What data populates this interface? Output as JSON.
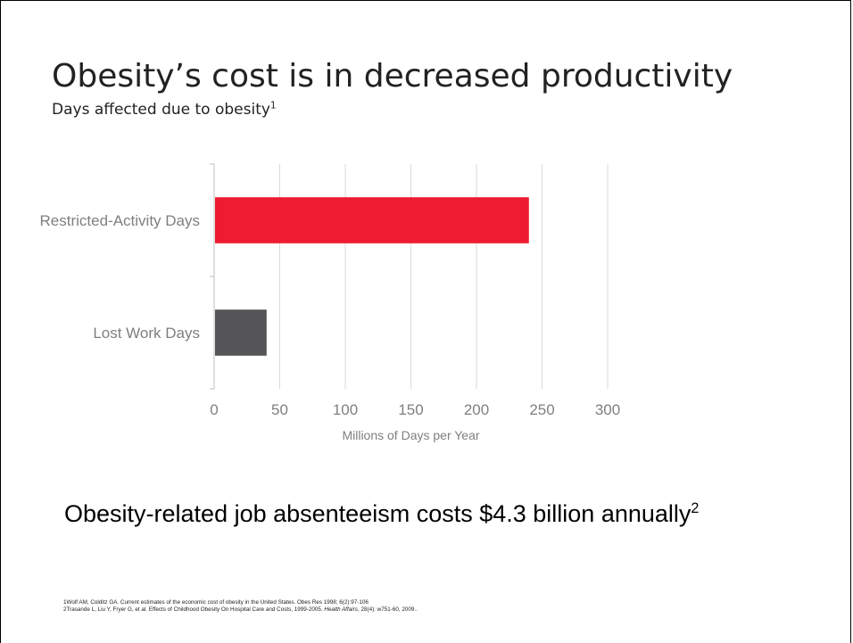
{
  "slide": {
    "title": "Obesity’s cost is in decreased productivity",
    "subtitle": "Days affected due to obesity",
    "subtitle_sup": "1",
    "takeaway": "Obesity-related job absenteeism costs $4.3 billion annually",
    "takeaway_sup": "2",
    "references": {
      "ref1": "1Wolf AM, Colditz GA.  Current estimates of the economic cost of obesity in the United States.  Obes Res 1998; 6(2):97-106",
      "ref2_pre": "2Trasande L, Liu Y, Fryer G, et al. Effects of Childhood Obesity On Hospital Care and Costs, 1999-2005. ",
      "ref2_journal": "Health Affairs",
      "ref2_post": ", 28(4): w751-60, 2009.."
    }
  },
  "chart_data": {
    "type": "bar",
    "orientation": "horizontal",
    "categories": [
      "Restricted-Activity Days",
      "Lost Work Days"
    ],
    "values": [
      240,
      40
    ],
    "colors": [
      "#ed1c33",
      "#555558"
    ],
    "xlabel": "Millions of Days per Year",
    "ylabel": "",
    "xlim": [
      0,
      300
    ],
    "xticks": [
      0,
      50,
      100,
      150,
      200,
      250,
      300
    ],
    "grid": true,
    "legend": "none"
  }
}
